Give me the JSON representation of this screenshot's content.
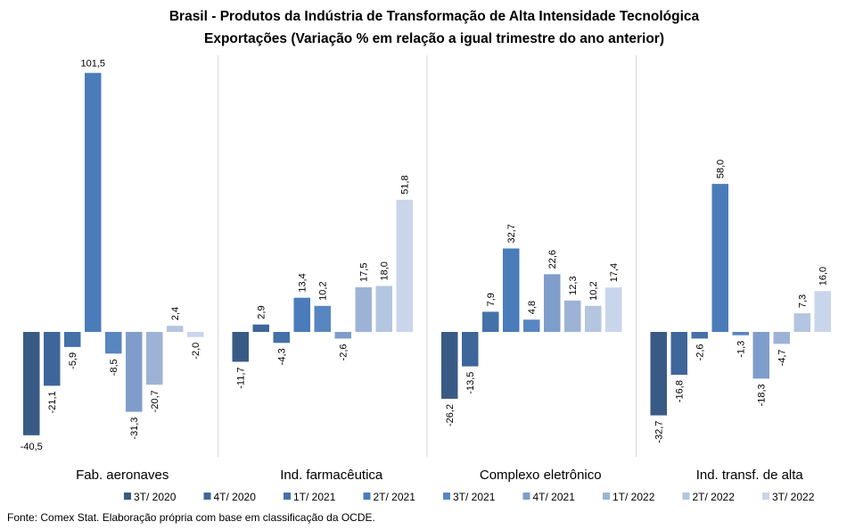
{
  "chart_data": {
    "type": "bar",
    "title": "Brasil - Produtos da Indústria de Transformação de Alta Intensidade Tecnológica",
    "subtitle": "Exportações (Variação % em relação a igual trimestre do ano anterior)",
    "categories": [
      "Fab. aeronaves",
      "Ind. farmacêutica",
      "Complexo eletrônico",
      "Ind. transf. de alta"
    ],
    "series": [
      {
        "name": "3T/ 2020",
        "color": "#3a5a86",
        "values": [
          -40.5,
          -11.7,
          -26.2,
          -32.7
        ],
        "labels": [
          "-40,5",
          "-11,7",
          "-26,2",
          "-32,7"
        ]
      },
      {
        "name": "4T/ 2020",
        "color": "#3f669a",
        "values": [
          -21.1,
          2.9,
          -13.5,
          -16.8
        ],
        "labels": [
          "-21,1",
          "2,9",
          "-13,5",
          "-16,8"
        ]
      },
      {
        "name": "1T/ 2021",
        "color": "#4571a9",
        "values": [
          -5.9,
          -4.3,
          7.9,
          -2.6
        ],
        "labels": [
          "-5,9",
          "-4,3",
          "7,9",
          "-2,6"
        ]
      },
      {
        "name": "2T/ 2021",
        "color": "#4a7cb9",
        "values": [
          101.5,
          13.4,
          32.7,
          58.0
        ],
        "labels": [
          "101,5",
          "13,4",
          "32,7",
          "58,0"
        ]
      },
      {
        "name": "3T/ 2021",
        "color": "#5886c0",
        "values": [
          -8.5,
          10.2,
          4.8,
          -1.3
        ],
        "labels": [
          "-8,5",
          "10,2",
          "4,8",
          "-1,3"
        ]
      },
      {
        "name": "4T/ 2021",
        "color": "#7e9dcb",
        "values": [
          -31.3,
          -2.6,
          22.6,
          -18.3
        ],
        "labels": [
          "-31,3",
          "-2,6",
          "22,6",
          "-18,3"
        ]
      },
      {
        "name": "1T/ 2022",
        "color": "#9db3d6",
        "values": [
          -20.7,
          17.5,
          12.3,
          -4.7
        ],
        "labels": [
          "-20,7",
          "17,5",
          "12,3",
          "-4,7"
        ]
      },
      {
        "name": "2T/ 2022",
        "color": "#b4c5e0",
        "values": [
          2.4,
          18.0,
          10.2,
          7.3
        ],
        "labels": [
          "2,4",
          "18,0",
          "10,2",
          "7,3"
        ]
      },
      {
        "name": "3T/ 2022",
        "color": "#c9d5ea",
        "values": [
          -2.0,
          51.8,
          17.4,
          16.0
        ],
        "labels": [
          "-2,0",
          "51,8",
          "17,4",
          "16,0"
        ]
      }
    ],
    "ylim": [
      -45,
      110
    ],
    "grid": false,
    "legend": "bottom",
    "data_labels": true
  },
  "footer": {
    "source": "Fonte: Comex Stat. Elaboração própria com base em classificação da OCDE."
  }
}
